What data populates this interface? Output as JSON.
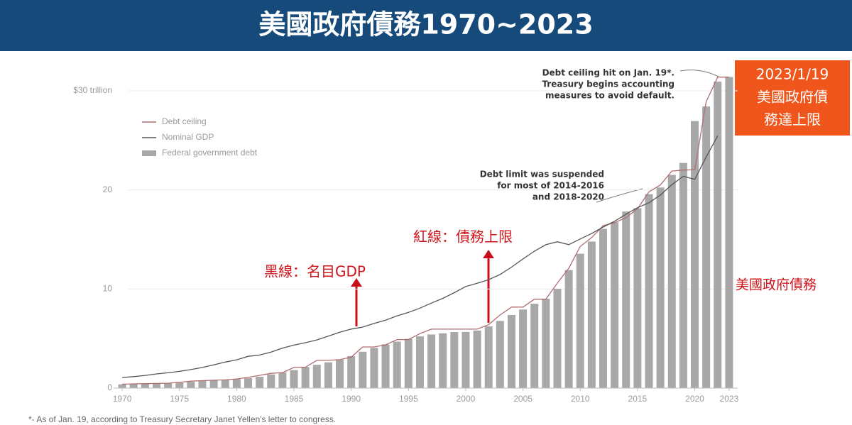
{
  "chart_data": {
    "type": "bar",
    "title": "美國政府債務1970~2023",
    "x": [
      1970,
      1971,
      1972,
      1973,
      1974,
      1975,
      1976,
      1977,
      1978,
      1979,
      1980,
      1981,
      1982,
      1983,
      1984,
      1985,
      1986,
      1987,
      1988,
      1989,
      1990,
      1991,
      1992,
      1993,
      1994,
      1995,
      1996,
      1997,
      1998,
      1999,
      2000,
      2001,
      2002,
      2003,
      2004,
      2005,
      2006,
      2007,
      2008,
      2009,
      2010,
      2011,
      2012,
      2013,
      2014,
      2015,
      2016,
      2017,
      2018,
      2019,
      2020,
      2021,
      2022,
      2023
    ],
    "series": [
      {
        "name": "Federal government debt",
        "color": "#a8a8a8",
        "values": [
          0.38,
          0.41,
          0.44,
          0.47,
          0.49,
          0.54,
          0.63,
          0.71,
          0.78,
          0.83,
          0.91,
          1.0,
          1.14,
          1.38,
          1.57,
          1.82,
          2.13,
          2.35,
          2.6,
          2.86,
          3.23,
          3.67,
          4.06,
          4.41,
          4.69,
          4.97,
          5.22,
          5.41,
          5.53,
          5.66,
          5.67,
          5.81,
          6.23,
          6.78,
          7.38,
          7.93,
          8.51,
          9.01,
          10.02,
          11.91,
          13.56,
          14.79,
          16.07,
          16.74,
          17.82,
          18.15,
          19.57,
          20.24,
          21.52,
          22.72,
          26.95,
          28.43,
          30.93,
          31.4
        ]
      },
      {
        "name": "Debt ceiling",
        "color": "#b06d70",
        "values": [
          0.395,
          0.43,
          0.45,
          0.475,
          0.495,
          0.577,
          0.7,
          0.752,
          0.798,
          0.83,
          0.925,
          1.08,
          1.29,
          1.49,
          1.57,
          2.08,
          2.11,
          2.8,
          2.8,
          2.87,
          3.12,
          4.15,
          4.15,
          4.37,
          4.9,
          4.9,
          5.5,
          5.95,
          5.95,
          5.95,
          5.95,
          5.95,
          6.4,
          7.38,
          8.18,
          8.18,
          8.97,
          8.97,
          10.6,
          12.1,
          14.29,
          15.19,
          16.39,
          16.7,
          17.2,
          18.1,
          19.8,
          20.5,
          21.9,
          22.0,
          22.03,
          28.9,
          31.38,
          31.38
        ]
      },
      {
        "name": "Nominal GDP",
        "color": "#555555",
        "values": [
          1.07,
          1.16,
          1.28,
          1.43,
          1.55,
          1.69,
          1.87,
          2.08,
          2.35,
          2.63,
          2.86,
          3.21,
          3.34,
          3.63,
          4.04,
          4.34,
          4.58,
          4.86,
          5.24,
          5.64,
          5.96,
          6.16,
          6.52,
          6.86,
          7.29,
          7.64,
          8.07,
          8.58,
          9.06,
          9.63,
          10.25,
          10.58,
          10.94,
          11.46,
          12.21,
          13.04,
          13.82,
          14.47,
          14.77,
          14.48,
          15.05,
          15.6,
          16.25,
          16.84,
          17.55,
          18.21,
          18.7,
          19.48,
          20.53,
          21.38,
          21.06,
          23.32,
          25.46,
          null
        ]
      }
    ],
    "xlim": [
      1969.25,
      2023.75
    ],
    "xticks": [
      1970,
      1975,
      1980,
      1985,
      1990,
      1995,
      2000,
      2005,
      2010,
      2015,
      2020,
      2023
    ],
    "ylim": [
      0,
      30
    ],
    "yticks": [
      0,
      10,
      20,
      {
        "value": 30,
        "label": "$30 trillion"
      }
    ],
    "grid": true,
    "annotations": {
      "ceiling_hit": [
        "Debt ceiling hit on Jan. 19*.",
        "Treasury begins accounting",
        "measures to avoid default."
      ],
      "suspended": [
        "Debt limit was suspended",
        "for most of 2014-2016",
        "and 2018-2020"
      ],
      "gdp_label": "黑線：名目GDP",
      "ceiling_label": "紅線：債務上限",
      "debt_label": "美國政府債務",
      "callout": [
        "2023/1/19",
        "美國政府債",
        "務達上限"
      ]
    },
    "footnote": "*- As of Jan. 19, according to Treasury Secretary Janet Yellen's letter to congress."
  }
}
